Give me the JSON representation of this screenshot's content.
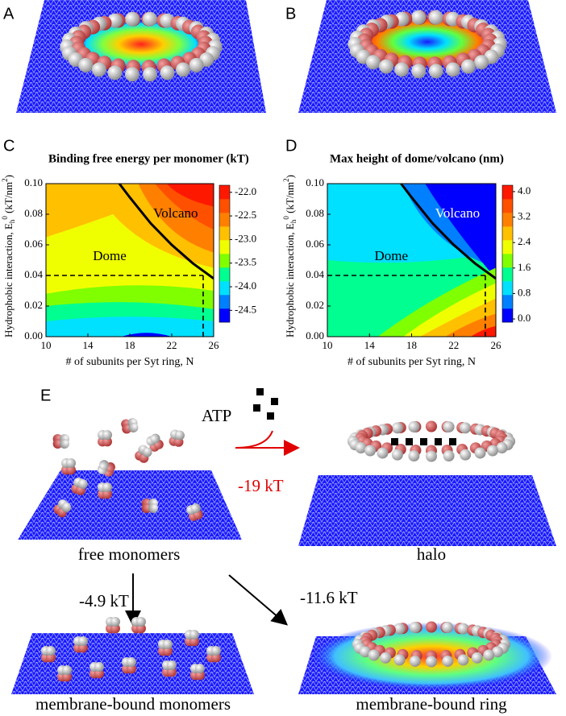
{
  "panel_labels": [
    "A",
    "B",
    "C",
    "D",
    "E"
  ],
  "chart_data": [
    {
      "type": "contour",
      "title": "Binding free energy per monomer (kT)",
      "x_label": "# of subunits per Syt ring, N",
      "y_label": [
        "Hydrophobic interaction, E",
        "h",
        "0",
        " (kT/nm",
        "2",
        ")"
      ],
      "xlim": [
        10,
        26
      ],
      "xticks": [
        10,
        14,
        18,
        22,
        26
      ],
      "ylim": [
        0,
        0.1
      ],
      "yticks": [
        {
          "value": 0,
          "label": "0.00"
        },
        {
          "value": 0.02,
          "label": "0.02"
        },
        {
          "value": 0.04,
          "label": "0.04"
        },
        {
          "value": 0.06,
          "label": "0.06"
        },
        {
          "value": 0.08,
          "label": "0.08"
        },
        {
          "value": 0.1,
          "label": "0.10"
        }
      ],
      "colors": [
        "#0000ff",
        "#0080ff",
        "#00e0ff",
        "#00ff90",
        "#80ff00",
        "#f0ff00",
        "#ffc000",
        "#ff8000",
        "#ff5000",
        "#ff1800"
      ],
      "clim": [
        -24.75,
        -21.85
      ],
      "cticks": [
        {
          "value": -22,
          "label": "-22.0"
        },
        {
          "value": -22.5,
          "label": "-22.5"
        },
        {
          "value": -23,
          "label": "-23.0"
        },
        {
          "value": -23.5,
          "label": "-23.5"
        },
        {
          "value": -24,
          "label": "-24.0"
        },
        {
          "value": -24.5,
          "label": "-24.5"
        }
      ],
      "annotations": [
        "Volcano",
        "Dome"
      ],
      "boundary": {
        "x": [
          17,
          18,
          20,
          22,
          24,
          26
        ],
        "y": [
          0.1,
          0.091,
          0.074,
          0.06,
          0.048,
          0.038
        ]
      },
      "threshold": {
        "x": 25,
        "y": 0.04
      }
    },
    {
      "type": "contour",
      "title": "Max height of dome/volcano (nm)",
      "x_label": "# of subunits per Syt ring, N",
      "y_label": [
        "Hydrophobic interaction, E",
        "h",
        "0",
        " (kT/nm",
        "2",
        ")"
      ],
      "xlim": [
        10,
        26
      ],
      "xticks": [
        10,
        14,
        18,
        22,
        26
      ],
      "ylim": [
        0,
        0.1
      ],
      "yticks": [
        {
          "value": 0,
          "label": "0.00"
        },
        {
          "value": 0.02,
          "label": "0.02"
        },
        {
          "value": 0.04,
          "label": "0.04"
        },
        {
          "value": 0.06,
          "label": "0.06"
        },
        {
          "value": 0.08,
          "label": "0.08"
        },
        {
          "value": 0.1,
          "label": "0.10"
        }
      ],
      "colors": [
        "#0000ff",
        "#0080ff",
        "#00e0ff",
        "#00ff90",
        "#80ff00",
        "#f0ff00",
        "#ffc000",
        "#ff8000",
        "#ff5000",
        "#ff1800"
      ],
      "clim": [
        -0.1,
        4.2
      ],
      "cticks": [
        {
          "value": 4,
          "label": "4.0"
        },
        {
          "value": 3.2,
          "label": "3.2"
        },
        {
          "value": 2.4,
          "label": "2.4"
        },
        {
          "value": 1.6,
          "label": "1.6"
        },
        {
          "value": 0.8,
          "label": "0.8"
        },
        {
          "value": 0,
          "label": "0.0"
        }
      ],
      "annotations": [
        "Volcano",
        "Dome"
      ],
      "boundary": {
        "x": [
          17,
          18,
          20,
          22,
          24,
          26
        ],
        "y": [
          0.1,
          0.091,
          0.074,
          0.06,
          0.048,
          0.038
        ]
      },
      "threshold": {
        "x": 25,
        "y": 0.04
      }
    }
  ],
  "scheme": {
    "atp": "ATP",
    "halo_energy": "-19 kT",
    "free": "free monomers",
    "halo": "halo",
    "bound_energy": "-4.9 kT",
    "ring_energy": "-11.6 kT",
    "bound_monomers": "membrane-bound monomers",
    "bound_ring": "membrane-bound ring"
  }
}
